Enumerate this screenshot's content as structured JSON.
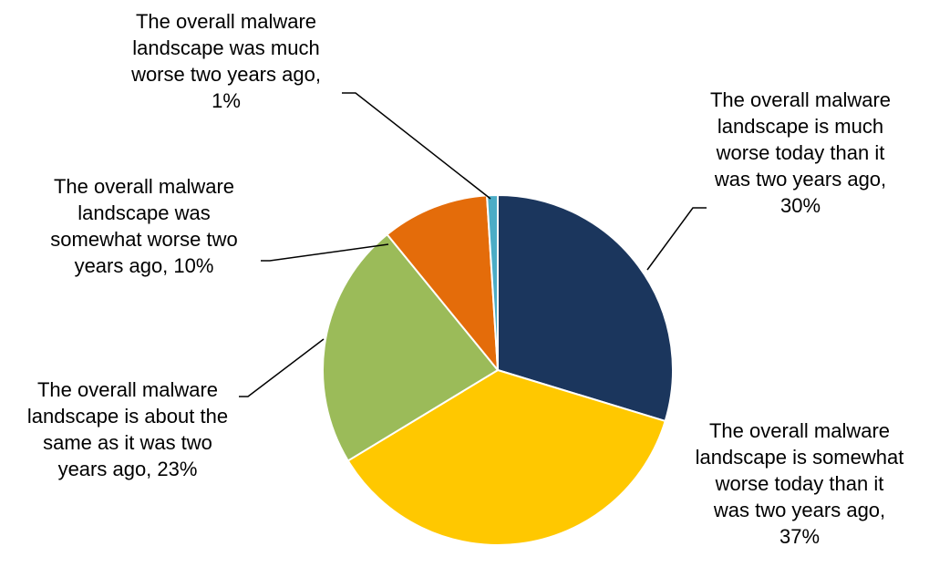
{
  "chart_data": {
    "type": "pie",
    "start_angle_deg": 0,
    "direction": "clockwise",
    "slices": [
      {
        "lines": [
          "The overall malware",
          "landscape is much",
          "worse today than it",
          "was two years ago,",
          "30%"
        ],
        "value": 30,
        "color": "#1b365d"
      },
      {
        "lines": [
          "The overall malware",
          "landscape is somewhat",
          "worse today than it",
          "was two years ago,",
          "37%"
        ],
        "value": 37,
        "color": "#ffc800"
      },
      {
        "lines": [
          "The overall malware",
          "landscape is about the",
          "same as it was two",
          "years ago, 23%"
        ],
        "value": 23,
        "color": "#9bbb59"
      },
      {
        "lines": [
          "The overall malware",
          "landscape was",
          "somewhat worse two",
          "years ago, 10%"
        ],
        "value": 10,
        "color": "#e46c0a"
      },
      {
        "lines": [
          "The overall malware",
          "landscape was much",
          "worse two years ago,",
          "1%"
        ],
        "value": 1,
        "color": "#4bacc6"
      }
    ]
  }
}
